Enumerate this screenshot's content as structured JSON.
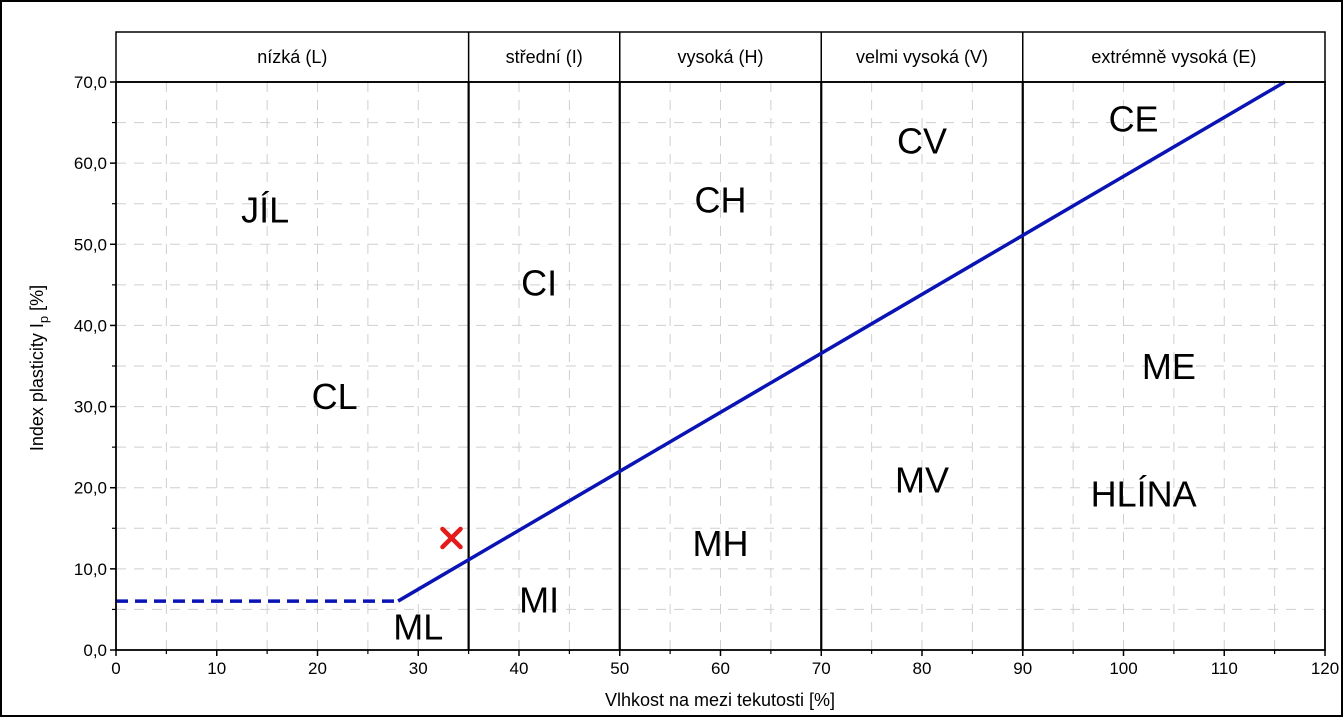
{
  "chart_data": {
    "type": "line",
    "xlabel": "Vlhkost na mezi tekutosti [%]",
    "ylabel_main": "Index plasticity I",
    "ylabel_sub": "p",
    "ylabel_unit": " [%]",
    "xlim": [
      0,
      120
    ],
    "ylim": [
      0,
      70
    ],
    "grid": true,
    "x_ticks": [
      {
        "value": 0,
        "label": "0"
      },
      {
        "value": 10,
        "label": "10"
      },
      {
        "value": 20,
        "label": "20"
      },
      {
        "value": 30,
        "label": "30"
      },
      {
        "value": 40,
        "label": "40"
      },
      {
        "value": 50,
        "label": "50"
      },
      {
        "value": 60,
        "label": "60"
      },
      {
        "value": 70,
        "label": "70"
      },
      {
        "value": 80,
        "label": "80"
      },
      {
        "value": 90,
        "label": "90"
      },
      {
        "value": 100,
        "label": "100"
      },
      {
        "value": 110,
        "label": "110"
      },
      {
        "value": 120,
        "label": "120"
      }
    ],
    "y_ticks": [
      {
        "value": 0,
        "label": "0,0"
      },
      {
        "value": 10,
        "label": "10,0"
      },
      {
        "value": 20,
        "label": "20,0"
      },
      {
        "value": 30,
        "label": "30,0"
      },
      {
        "value": 40,
        "label": "40,0"
      },
      {
        "value": 50,
        "label": "50,0"
      },
      {
        "value": 60,
        "label": "60,0"
      },
      {
        "value": 70,
        "label": "70,0"
      }
    ],
    "bands": [
      {
        "from": 0,
        "to": 35,
        "label": "nízká (L)"
      },
      {
        "from": 35,
        "to": 50,
        "label": "střední (I)"
      },
      {
        "from": 50,
        "to": 70,
        "label": "vysoká (H)"
      },
      {
        "from": 70,
        "to": 90,
        "label": "velmi vysoká (V)"
      },
      {
        "from": 90,
        "to": 120,
        "label": "extrémně vysoká (E)"
      }
    ],
    "dividers": [
      35,
      50,
      70,
      90
    ],
    "a_line": {
      "x": [
        28,
        116
      ],
      "y": [
        6.03,
        70
      ],
      "color": "#0a14b4"
    },
    "dashed_line": {
      "x": [
        0,
        28
      ],
      "y": [
        6.03,
        6.03
      ],
      "color": "#0a14b4"
    },
    "regions": [
      {
        "label": "JÍL",
        "x": 14.8,
        "y": 54.3
      },
      {
        "label": "CL",
        "x": 21.7,
        "y": 31.3
      },
      {
        "label": "ML",
        "x": 30.0,
        "y": 2.9
      },
      {
        "label": "CI",
        "x": 42.0,
        "y": 45.3
      },
      {
        "label": "MI",
        "x": 42.0,
        "y": 6.2
      },
      {
        "label": "CH",
        "x": 60.0,
        "y": 55.5
      },
      {
        "label": "MH",
        "x": 60.0,
        "y": 13.2
      },
      {
        "label": "CV",
        "x": 80.0,
        "y": 62.8
      },
      {
        "label": "MV",
        "x": 80.0,
        "y": 21.0
      },
      {
        "label": "CE",
        "x": 101.0,
        "y": 65.5
      },
      {
        "label": "ME",
        "x": 104.5,
        "y": 35.0
      },
      {
        "label": "HLÍNA",
        "x": 102.0,
        "y": 19.3
      }
    ],
    "marker": {
      "x": 33.3,
      "y": 13.8,
      "symbol": "x",
      "color": "#e51a1a"
    }
  }
}
